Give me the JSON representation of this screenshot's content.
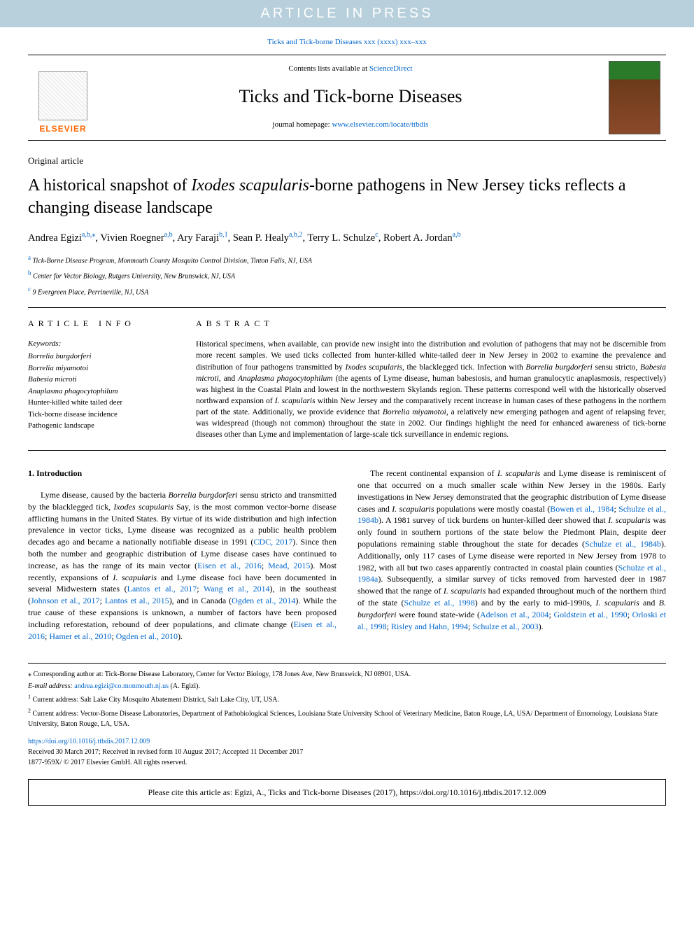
{
  "banner": "ARTICLE IN PRESS",
  "citation_top": {
    "text": "Ticks and Tick-borne Diseases xxx (xxxx) xxx–xxx"
  },
  "header": {
    "contents_prefix": "Contents lists available at ",
    "contents_link": "ScienceDirect",
    "journal_title": "Ticks and Tick-borne Diseases",
    "homepage_prefix": "journal homepage: ",
    "homepage_url": "www.elsevier.com/locate/ttbdis",
    "elsevier": "ELSEVIER"
  },
  "article": {
    "type": "Original article",
    "title_pre": "A historical snapshot of ",
    "title_italic": "Ixodes scapularis",
    "title_post": "-borne pathogens in New Jersey ticks reflects a changing disease landscape",
    "authors_html": "Andrea Egizi<sup><a>a</a>,<a>b</a>,⁎</sup>, Vivien Roegner<sup><a>a</a>,<a>b</a></sup>, Ary Faraji<sup><a>b</a>,<a>1</a></sup>, Sean P. Healy<sup><a>a</a>,<a>b</a>,<a>2</a></sup>, Terry L. Schulze<sup><a>c</a></sup>, Robert A. Jordan<sup><a>a</a>,<a>b</a></sup>",
    "affiliations": [
      {
        "sup": "a",
        "text": "Tick-Borne Disease Program, Monmouth County Mosquito Control Division, Tinton Falls, NJ, USA"
      },
      {
        "sup": "b",
        "text": "Center for Vector Biology, Rutgers University, New Brunswick, NJ, USA"
      },
      {
        "sup": "c",
        "text": "9 Evergreen Place, Perrineville, NJ, USA"
      }
    ]
  },
  "info": {
    "heading": "ARTICLE INFO",
    "keywords_label": "Keywords:",
    "keywords": [
      {
        "italic": true,
        "text": "Borrelia burgdorferi"
      },
      {
        "italic": true,
        "text": "Borrelia miyamotoi"
      },
      {
        "italic": true,
        "text": "Babesia microti"
      },
      {
        "italic": true,
        "text": "Anaplasma phagocytophilum"
      },
      {
        "italic": false,
        "text": "Hunter-killed white tailed deer"
      },
      {
        "italic": false,
        "text": "Tick-borne disease incidence"
      },
      {
        "italic": false,
        "text": "Pathogenic landscape"
      }
    ]
  },
  "abstract": {
    "heading": "ABSTRACT",
    "text": "Historical specimens, when available, can provide new insight into the distribution and evolution of pathogens that may not be discernible from more recent samples. We used ticks collected from hunter-killed white-tailed deer in New Jersey in 2002 to examine the prevalence and distribution of four pathogens transmitted by <span class=\"italic\">Ixodes scapularis</span>, the blacklegged tick. Infection with <span class=\"italic\">Borrelia burgdorferi</span> sensu stricto, <span class=\"italic\">Babesia microti</span>, and <span class=\"italic\">Anaplasma phagocytophilum</span> (the agents of Lyme disease, human babesiosis, and human granulocytic anaplasmosis, respectively) was highest in the Coastal Plain and lowest in the northwestern Skylands region. These patterns correspond well with the historically observed northward expansion of <span class=\"italic\">I. scapularis</span> within New Jersey and the comparatively recent increase in human cases of these pathogens in the northern part of the state. Additionally, we provide evidence that <span class=\"italic\">Borrelia miyamotoi</span>, a relatively new emerging pathogen and agent of relapsing fever, was widespread (though not common) throughout the state in 2002. Our findings highlight the need for enhanced awareness of tick-borne diseases other than Lyme and implementation of large-scale tick surveillance in endemic regions."
  },
  "sections": {
    "intro_heading": "1. Introduction",
    "para1": "Lyme disease, caused by the bacteria <span class=\"italic\">Borrelia burgdorferi</span> sensu stricto and transmitted by the blacklegged tick, <span class=\"italic\">Ixodes scapularis</span> Say, is the most common vector-borne disease afflicting humans in the United States. By virtue of its wide distribution and high infection prevalence in vector ticks, Lyme disease was recognized as a public health problem decades ago and became a nationally notifiable disease in 1991 (<a>CDC, 2017</a>). Since then both the number and geographic distribution of Lyme disease cases have continued to increase, as has the range of its main vector (<a>Eisen et al., 2016</a>; <a>Mead, 2015</a>). Most recently, expansions of <span class=\"italic\">I. scapularis</span> and Lyme disease foci have been documented in several Midwestern states (<a>Lantos et al., 2017</a>; <a>Wang et al., 2014</a>), in the southeast (<a>Johnson et al., 2017</a>; <a>Lantos et al., 2015</a>), and in Canada (<a>Ogden et al., 2014</a>). While the true cause of these expansions is unknown, a number of factors have been proposed including reforestation, rebound of deer populations, and climate change (<a>Eisen et al., 2016</a>; <a>Hamer et al., 2010</a>; <a>Ogden et al., 2010</a>).",
    "para2": "The recent continental expansion of <span class=\"italic\">I. scapularis</span> and Lyme disease is reminiscent of one that occurred on a much smaller scale within New Jersey in the 1980s. Early investigations in New Jersey demonstrated that the geographic distribution of Lyme disease cases and <span class=\"italic\">I. scapularis</span> populations were mostly coastal (<a>Bowen et al., 1984</a>; <a>Schulze et al., 1984b</a>). A 1981 survey of tick burdens on hunter-killed deer showed that <span class=\"italic\">I. scapularis</span> was only found in southern portions of the state below the Piedmont Plain, despite deer populations remaining stable throughout the state for decades (<a>Schulze et al., 1984b</a>). Additionally, only 117 cases of Lyme disease were reported in New Jersey from 1978 to 1982, with all but two cases apparently contracted in coastal plain counties (<a>Schulze et al., 1984a</a>). Subsequently, a similar survey of ticks removed from harvested deer in 1987 showed that the range of <span class=\"italic\">I. scapularis</span> had expanded throughout much of the northern third of the state (<a>Schulze et al., 1998</a>) and by the early to mid-1990s, <span class=\"italic\">I. scapularis</span> and <span class=\"italic\">B. burgdorferi</span> were found state-wide (<a>Adelson et al., 2004</a>; <a>Goldstein et al., 1990</a>; <a>Orloski et al., 1998</a>; <a>Risley and Hahn, 1994</a>; <a>Schulze et al., 2003</a>)."
  },
  "footnotes": {
    "corr": "⁎ Corresponding author at: Tick-Borne Disease Laboratory, Center for Vector Biology, 178 Jones Ave, New Brunswick, NJ 08901, USA.",
    "email_label": "E-mail address: ",
    "email": "andrea.egizi@co.monmouth.nj.us",
    "email_paren": " (A. Egizi).",
    "fn1": "Current address: Salt Lake City Mosquito Abatement District, Salt Lake City, UT, USA.",
    "fn2": "Current address: Vector-Borne Disease Laboratories, Department of Pathobiological Sciences, Louisiana State University School of Veterinary Medicine, Baton Rouge, LA, USA/ Department of Entomology, Louisiana State University, Baton Rouge, LA, USA."
  },
  "doi": {
    "url": "https://doi.org/10.1016/j.ttbdis.2017.12.009",
    "received": "Received 30 March 2017; Received in revised form 10 August 2017; Accepted 11 December 2017",
    "issn": "1877-959X/ © 2017 Elsevier GmbH. All rights reserved."
  },
  "cite_box": "Please cite this article as: Egizi, A., Ticks and Tick-borne Diseases (2017), https://doi.org/10.1016/j.ttbdis.2017.12.009"
}
